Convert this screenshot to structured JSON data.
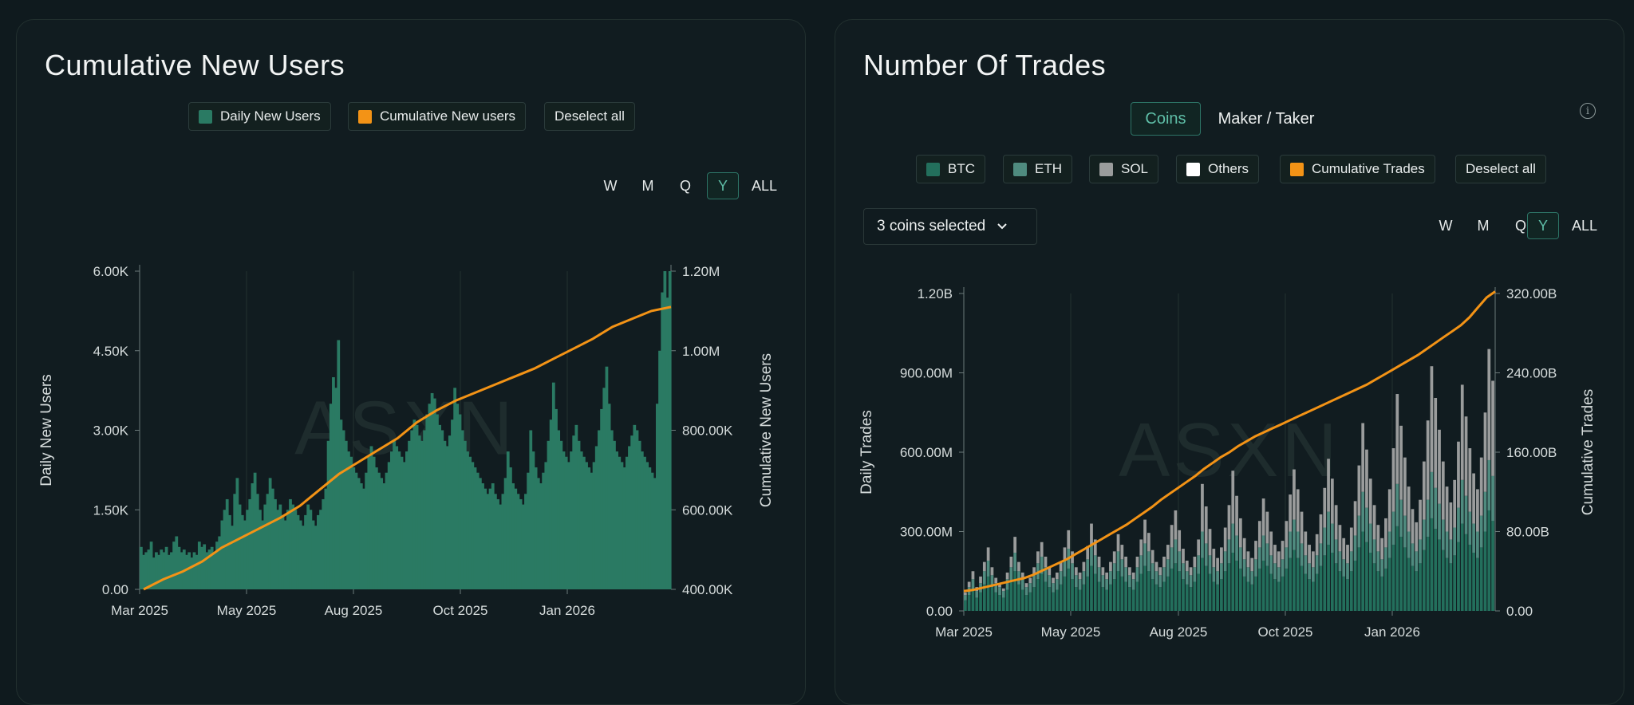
{
  "left": {
    "title": "Cumulative New Users",
    "legend": [
      {
        "label": "Daily New Users",
        "color": "#2a7a63"
      },
      {
        "label": "Cumulative New users",
        "color": "#f39316"
      },
      {
        "label": "Deselect all",
        "color": ""
      }
    ],
    "timeframes": [
      "W",
      "M",
      "Q",
      "Y",
      "ALL"
    ],
    "active_timeframe": "Y"
  },
  "right": {
    "title": "Number Of Trades",
    "tabs": [
      "Coins",
      "Maker / Taker"
    ],
    "active_tab": "Coins",
    "legend": [
      {
        "label": "BTC",
        "color": "#236f5c"
      },
      {
        "label": "ETH",
        "color": "#4f8b7f"
      },
      {
        "label": "SOL",
        "color": "#9a9c9c"
      },
      {
        "label": "Others",
        "color": "#ffffff"
      },
      {
        "label": "Cumulative Trades",
        "color": "#f39316"
      },
      {
        "label": "Deselect all",
        "color": ""
      }
    ],
    "dropdown_label": "3 coins selected",
    "timeframes": [
      "W",
      "M",
      "Q",
      "Y",
      "ALL"
    ],
    "active_timeframe": "Y",
    "info_icon": "i"
  },
  "watermark": "ASXN",
  "chart_data": [
    {
      "type": "bar",
      "title": "Cumulative New Users",
      "ylabel": "Daily New Users",
      "y2label": "Cumulative New Users",
      "x_ticks": [
        "Mar 2025",
        "May 2025",
        "Aug 2025",
        "Oct 2025",
        "Jan 2026"
      ],
      "y_ticks": [
        "0.00",
        "1.50K",
        "3.00K",
        "4.50K",
        "6.00K"
      ],
      "y2_ticks": [
        "400.00K",
        "600.00K",
        "800.00K",
        "1.00M",
        "1.20M"
      ],
      "ylim": [
        0,
        6000
      ],
      "y2lim": [
        400000,
        1200000
      ],
      "grid": "vertical",
      "series_daily": {
        "name": "Daily New Users",
        "color": "#2a7a63",
        "values": [
          800,
          650,
          700,
          750,
          900,
          600,
          700,
          650,
          750,
          700,
          800,
          650,
          700,
          900,
          1000,
          800,
          700,
          750,
          650,
          700,
          600,
          700,
          650,
          900,
          800,
          850,
          700,
          750,
          800,
          700,
          900,
          1000,
          1300,
          1500,
          1700,
          1400,
          1200,
          1800,
          2100,
          1600,
          1400,
          1300,
          1500,
          1700,
          2000,
          2200,
          1800,
          1500,
          1300,
          1600,
          1800,
          2100,
          1900,
          1700,
          1500,
          1600,
          1400,
          1300,
          1500,
          1700,
          1600,
          1500,
          1400,
          1300,
          1200,
          1400,
          1600,
          1500,
          1300,
          1200,
          1400,
          1500,
          1700,
          1900,
          2800,
          3500,
          4000,
          3800,
          4700,
          3200,
          3000,
          2800,
          2600,
          2500,
          2300,
          2200,
          2100,
          2000,
          1900,
          2200,
          2500,
          2700,
          2500,
          2300,
          2200,
          2100,
          2000,
          2200,
          2400,
          2600,
          2800,
          2700,
          2600,
          2500,
          2400,
          2600,
          2800,
          3000,
          3200,
          3100,
          2900,
          2800,
          3000,
          3300,
          3500,
          3700,
          3600,
          3300,
          3100,
          3000,
          2800,
          2700,
          2900,
          3200,
          3800,
          3500,
          3300,
          3000,
          2800,
          2600,
          2500,
          2400,
          2300,
          2200,
          2100,
          2000,
          1900,
          1800,
          1900,
          2000,
          1800,
          1700,
          1600,
          1800,
          2100,
          2600,
          2300,
          2000,
          1900,
          1800,
          1700,
          1600,
          1800,
          2200,
          3000,
          2600,
          2300,
          2100,
          2000,
          2200,
          2400,
          2800,
          3200,
          3900,
          3400,
          3000,
          2800,
          2600,
          2500,
          2400,
          2600,
          2900,
          3100,
          2800,
          2600,
          2500,
          2400,
          2300,
          2200,
          2400,
          2700,
          3000,
          3400,
          3800,
          4200,
          3500,
          3000,
          2800,
          2600,
          2500,
          2400,
          2300,
          2500,
          2700,
          2900,
          3100,
          3000,
          2800,
          2600,
          2500,
          2400,
          2300,
          2200,
          2100,
          3500,
          4500,
          5600,
          6000,
          5500,
          6000
        ]
      },
      "series_cumulative": {
        "name": "Cumulative New users",
        "color": "#f39316",
        "values": [
          400000,
          425000,
          445000,
          470000,
          505000,
          530000,
          555000,
          580000,
          610000,
          650000,
          690000,
          720000,
          750000,
          780000,
          820000,
          850000,
          875000,
          895000,
          915000,
          935000,
          955000,
          980000,
          1005000,
          1030000,
          1060000,
          1080000,
          1100000,
          1110000
        ]
      }
    },
    {
      "type": "bar",
      "title": "Number Of Trades",
      "ylabel": "Daily Trades",
      "y2label": "Cumulative Trades",
      "x_ticks": [
        "Mar 2025",
        "May 2025",
        "Aug 2025",
        "Oct 2025",
        "Jan 2026"
      ],
      "y_ticks": [
        "0.00",
        "300.00M",
        "600.00M",
        "900.00M",
        "1.20B"
      ],
      "y2_ticks": [
        "0.00",
        "80.00B",
        "160.00B",
        "240.00B",
        "320.00B"
      ],
      "ylim": [
        0,
        1200000000
      ],
      "y2lim": [
        0,
        320000000000
      ],
      "grid": "vertical",
      "series": [
        {
          "name": "BTC",
          "color": "#236f5c",
          "values": [
            40,
            60,
            80,
            50,
            70,
            100,
            130,
            90,
            70,
            60,
            50,
            80,
            110,
            150,
            100,
            80,
            60,
            70,
            90,
            120,
            140,
            110,
            90,
            70,
            80,
            100,
            130,
            160,
            120,
            90,
            80,
            100,
            130,
            170,
            140,
            110,
            90,
            80,
            100,
            120,
            150,
            130,
            110,
            90,
            80,
            110,
            140,
            170,
            150,
            120,
            100,
            90,
            110,
            130,
            160,
            180,
            150,
            120,
            100,
            90,
            110,
            140,
            200,
            170,
            140,
            110,
            100,
            120,
            150,
            180,
            220,
            190,
            160,
            130,
            110,
            100,
            130,
            160,
            190,
            170,
            140,
            120,
            110,
            130,
            160,
            200,
            230,
            200,
            170,
            140,
            120,
            110,
            140,
            170,
            210,
            250,
            220,
            180,
            150,
            130,
            120,
            150,
            190,
            240,
            300,
            260,
            220,
            180,
            150,
            130,
            160,
            200,
            250,
            320,
            280,
            240,
            200,
            170,
            150,
            180,
            230,
            280,
            350,
            310,
            270,
            230,
            200,
            180,
            210,
            260,
            330,
            290,
            250,
            220,
            200,
            240,
            300,
            380,
            340
          ]
        },
        {
          "name": "ETH",
          "color": "#4f8b7f",
          "values": [
            20,
            30,
            40,
            25,
            35,
            50,
            60,
            45,
            35,
            30,
            25,
            40,
            55,
            70,
            50,
            40,
            30,
            35,
            45,
            60,
            65,
            55,
            45,
            35,
            40,
            50,
            60,
            75,
            60,
            45,
            40,
            50,
            65,
            80,
            70,
            55,
            45,
            40,
            50,
            60,
            75,
            65,
            55,
            45,
            40,
            55,
            70,
            85,
            75,
            60,
            50,
            45,
            55,
            65,
            80,
            90,
            75,
            60,
            50,
            45,
            55,
            70,
            100,
            85,
            70,
            55,
            50,
            60,
            75,
            90,
            110,
            95,
            80,
            65,
            55,
            50,
            65,
            80,
            95,
            85,
            70,
            60,
            55,
            65,
            80,
            100,
            115,
            100,
            85,
            70,
            60,
            55,
            70,
            85,
            105,
            125,
            110,
            90,
            75,
            65,
            60,
            75,
            95,
            120,
            150,
            130,
            110,
            90,
            75,
            65,
            80,
            100,
            125,
            160,
            140,
            120,
            100,
            85,
            75,
            90,
            115,
            140,
            175,
            155,
            135,
            115,
            100,
            90,
            105,
            130,
            165,
            145,
            125,
            110,
            100,
            120,
            150,
            190,
            170
          ]
        },
        {
          "name": "SOL",
          "color": "#9a9c9c",
          "values": [
            10,
            20,
            30,
            15,
            25,
            35,
            50,
            30,
            20,
            15,
            10,
            25,
            40,
            60,
            35,
            25,
            15,
            20,
            30,
            45,
            55,
            40,
            30,
            20,
            25,
            35,
            50,
            70,
            45,
            30,
            25,
            35,
            50,
            80,
            60,
            40,
            30,
            25,
            35,
            45,
            65,
            55,
            40,
            30,
            25,
            40,
            60,
            90,
            70,
            50,
            35,
            30,
            40,
            55,
            85,
            110,
            80,
            55,
            40,
            30,
            40,
            60,
            180,
            140,
            100,
            70,
            50,
            60,
            90,
            130,
            200,
            150,
            110,
            80,
            60,
            50,
            70,
            100,
            140,
            120,
            90,
            70,
            60,
            70,
            100,
            140,
            190,
            160,
            120,
            90,
            70,
            60,
            80,
            110,
            150,
            200,
            170,
            130,
            100,
            80,
            70,
            90,
            130,
            190,
            260,
            220,
            170,
            130,
            100,
            80,
            110,
            160,
            240,
            340,
            280,
            220,
            170,
            130,
            110,
            150,
            220,
            300,
            400,
            340,
            280,
            220,
            170,
            140,
            180,
            250,
            360,
            300,
            240,
            190,
            160,
            220,
            300,
            420,
            360
          ]
        }
      ],
      "series_cumulative": {
        "name": "Cumulative Trades",
        "color": "#f39316",
        "values": [
          20,
          21,
          23,
          25,
          27,
          29,
          31,
          33,
          36,
          40,
          44,
          48,
          52,
          57,
          62,
          67,
          72,
          77,
          82,
          87,
          93,
          99,
          105,
          112,
          118,
          124,
          130,
          136,
          143,
          149,
          155,
          160,
          166,
          171,
          176,
          180,
          184,
          188,
          192,
          196,
          200,
          204,
          208,
          212,
          216,
          220,
          224,
          228,
          233,
          238,
          243,
          248,
          253,
          258,
          264,
          270,
          276,
          282,
          288,
          296,
          306,
          316,
          322
        ]
      }
    }
  ]
}
